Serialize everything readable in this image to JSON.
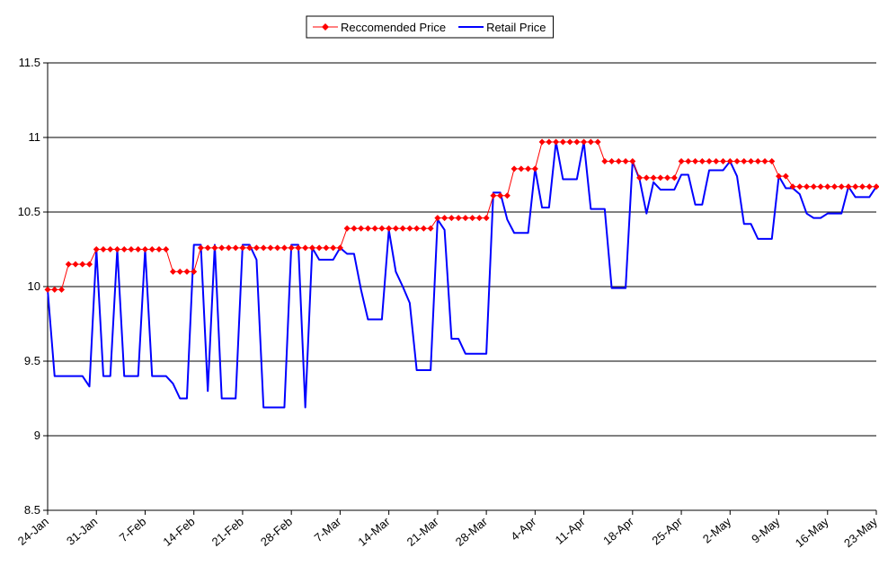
{
  "chart_data": {
    "type": "line",
    "legend": "top",
    "grid": true,
    "ylim": [
      8.5,
      11.5
    ],
    "yticks": [
      8.5,
      9,
      9.5,
      10,
      10.5,
      11,
      11.5
    ],
    "categories": [
      "24-Jan",
      null,
      null,
      null,
      null,
      null,
      null,
      "31-Jan",
      null,
      null,
      null,
      null,
      null,
      null,
      "7-Feb",
      null,
      null,
      null,
      null,
      null,
      null,
      "14-Feb",
      null,
      null,
      null,
      null,
      null,
      null,
      "21-Feb",
      null,
      null,
      null,
      null,
      null,
      null,
      "28-Feb",
      null,
      null,
      null,
      null,
      null,
      null,
      "7-Mar",
      null,
      null,
      null,
      null,
      null,
      null,
      "14-Mar",
      null,
      null,
      null,
      null,
      null,
      null,
      "21-Mar",
      null,
      null,
      null,
      null,
      null,
      null,
      "28-Mar",
      null,
      null,
      null,
      null,
      null,
      null,
      "4-Apr",
      null,
      null,
      null,
      null,
      null,
      null,
      "11-Apr",
      null,
      null,
      null,
      null,
      null,
      null,
      "18-Apr",
      null,
      null,
      null,
      null,
      null,
      null,
      "25-Apr",
      null,
      null,
      null,
      null,
      null,
      null,
      "2-May",
      null,
      null,
      null,
      null,
      null,
      null,
      "9-May",
      null,
      null,
      null,
      null,
      null,
      null,
      "16-May",
      null,
      null,
      null,
      null,
      null,
      null,
      "23-May"
    ],
    "series": [
      {
        "name": "Reccomended Price",
        "color": "#ff0000",
        "marker": "diamond",
        "values": [
          9.98,
          9.98,
          9.98,
          10.15,
          10.15,
          10.15,
          10.15,
          10.25,
          10.25,
          10.25,
          10.25,
          10.25,
          10.25,
          10.25,
          10.25,
          10.25,
          10.25,
          10.25,
          10.1,
          10.1,
          10.1,
          10.1,
          10.26,
          10.26,
          10.26,
          10.26,
          10.26,
          10.26,
          10.26,
          10.26,
          10.26,
          10.26,
          10.26,
          10.26,
          10.26,
          10.26,
          10.26,
          10.26,
          10.26,
          10.26,
          10.26,
          10.26,
          10.26,
          10.39,
          10.39,
          10.39,
          10.39,
          10.39,
          10.39,
          10.39,
          10.39,
          10.39,
          10.39,
          10.39,
          10.39,
          10.39,
          10.46,
          10.46,
          10.46,
          10.46,
          10.46,
          10.46,
          10.46,
          10.46,
          10.61,
          10.61,
          10.61,
          10.79,
          10.79,
          10.79,
          10.79,
          10.97,
          10.97,
          10.97,
          10.97,
          10.97,
          10.97,
          10.97,
          10.97,
          10.97,
          10.84,
          10.84,
          10.84,
          10.84,
          10.84,
          10.73,
          10.73,
          10.73,
          10.73,
          10.73,
          10.73,
          10.84,
          10.84,
          10.84,
          10.84,
          10.84,
          10.84,
          10.84,
          10.84,
          10.84,
          10.84,
          10.84,
          10.84,
          10.84,
          10.84,
          10.74,
          10.74,
          10.67,
          10.67,
          10.67,
          10.67,
          10.67,
          10.67,
          10.67,
          10.67,
          10.67,
          10.67,
          10.67,
          10.67,
          10.67
        ]
      },
      {
        "name": "Retail Price",
        "color": "#0000ff",
        "values": [
          9.98,
          9.4,
          9.4,
          9.4,
          9.4,
          9.4,
          9.33,
          10.25,
          9.4,
          9.4,
          10.25,
          9.4,
          9.4,
          9.4,
          10.25,
          9.4,
          9.4,
          9.4,
          9.35,
          9.25,
          9.25,
          10.28,
          10.28,
          9.3,
          10.28,
          9.25,
          9.25,
          9.25,
          10.28,
          10.28,
          10.18,
          9.19,
          9.19,
          9.19,
          9.19,
          10.28,
          10.28,
          9.19,
          10.26,
          10.18,
          10.18,
          10.18,
          10.26,
          10.22,
          10.22,
          9.98,
          9.78,
          9.78,
          9.78,
          10.38,
          10.1,
          10.0,
          9.89,
          9.44,
          9.44,
          9.44,
          10.45,
          10.38,
          9.65,
          9.65,
          9.55,
          9.55,
          9.55,
          9.55,
          10.63,
          10.63,
          10.45,
          10.36,
          10.36,
          10.36,
          10.79,
          10.53,
          10.53,
          10.97,
          10.72,
          10.72,
          10.72,
          10.97,
          10.52,
          10.52,
          10.52,
          9.99,
          9.99,
          9.99,
          10.84,
          10.72,
          10.49,
          10.7,
          10.65,
          10.65,
          10.65,
          10.75,
          10.75,
          10.55,
          10.55,
          10.78,
          10.78,
          10.78,
          10.84,
          10.74,
          10.42,
          10.42,
          10.32,
          10.32,
          10.32,
          10.74,
          10.66,
          10.66,
          10.62,
          10.49,
          10.46,
          10.46,
          10.49,
          10.49,
          10.49,
          10.67,
          10.6,
          10.6,
          10.6,
          10.67
        ]
      }
    ]
  }
}
